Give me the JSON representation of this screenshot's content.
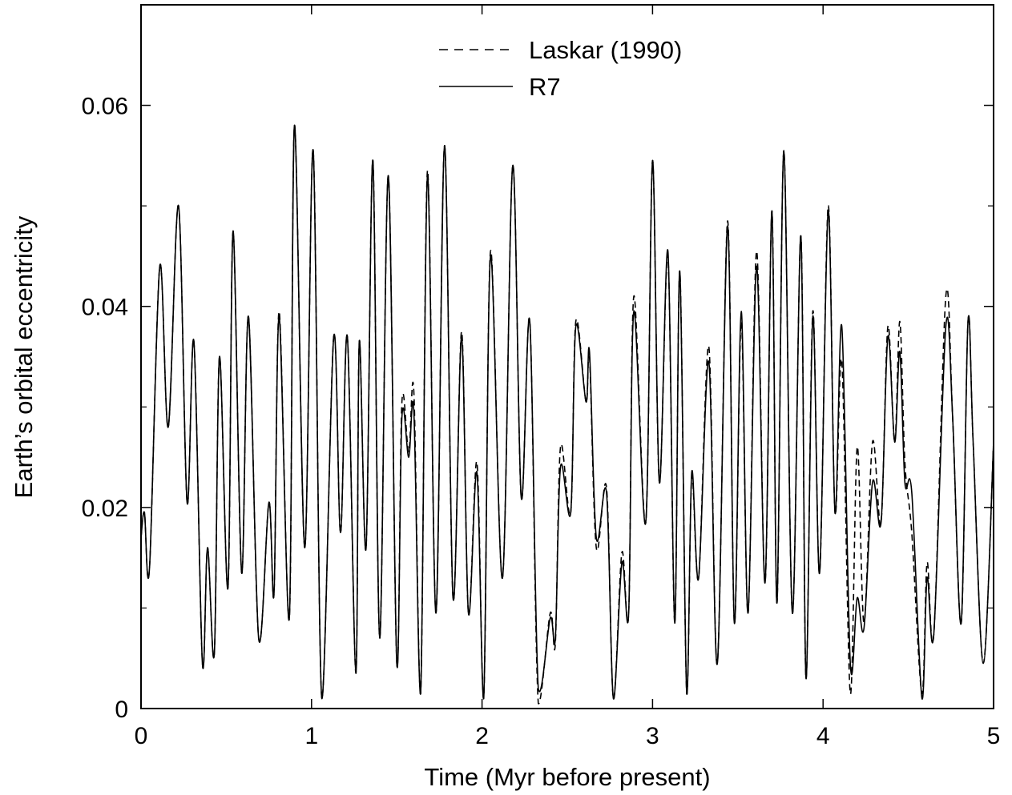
{
  "chart_data": {
    "type": "line",
    "xlabel": "Time (Myr before present)",
    "ylabel": "Earth’s orbital eccentricity",
    "xlim": [
      0,
      5
    ],
    "ylim": [
      0,
      0.07
    ],
    "x_ticks": [
      0,
      1,
      2,
      3,
      4,
      5
    ],
    "x_tick_labels": [
      "0",
      "1",
      "2",
      "3",
      "4",
      "5"
    ],
    "y_ticks": [
      0,
      0.02,
      0.04,
      0.06
    ],
    "y_tick_labels": [
      "0",
      "0.02",
      "0.04",
      "0.06"
    ],
    "y_minor_ticks": [
      0.01,
      0.03,
      0.05
    ],
    "grid": false,
    "legend_position": "top-center",
    "series": [
      {
        "name": "Laskar  (1990)",
        "style": "dashed",
        "x": [
          0.0,
          0.02,
          0.05,
          0.11,
          0.16,
          0.22,
          0.27,
          0.31,
          0.36,
          0.39,
          0.43,
          0.46,
          0.51,
          0.54,
          0.59,
          0.63,
          0.69,
          0.75,
          0.78,
          0.81,
          0.87,
          0.9,
          0.96,
          1.01,
          1.06,
          1.13,
          1.17,
          1.21,
          1.26,
          1.28,
          1.32,
          1.36,
          1.4,
          1.45,
          1.5,
          1.53,
          1.57,
          1.6,
          1.64,
          1.68,
          1.73,
          1.78,
          1.83,
          1.88,
          1.92,
          1.97,
          2.01,
          2.05,
          2.12,
          2.18,
          2.23,
          2.28,
          2.33,
          2.4,
          2.43,
          2.46,
          2.52,
          2.55,
          2.61,
          2.63,
          2.67,
          2.73,
          2.77,
          2.82,
          2.86,
          2.89,
          2.96,
          3.0,
          3.04,
          3.09,
          3.13,
          3.16,
          3.2,
          3.23,
          3.27,
          3.33,
          3.38,
          3.44,
          3.48,
          3.52,
          3.56,
          3.61,
          3.66,
          3.7,
          3.73,
          3.77,
          3.82,
          3.87,
          3.9,
          3.94,
          3.98,
          4.03,
          4.07,
          4.11,
          4.16,
          4.2,
          4.24,
          4.29,
          4.34,
          4.38,
          4.42,
          4.45,
          4.48,
          4.52,
          4.58,
          4.61,
          4.65,
          4.72,
          4.76,
          4.81,
          4.85,
          4.88,
          4.94,
          5.0
        ],
        "y": [
          0.017,
          0.0195,
          0.014,
          0.044,
          0.028,
          0.05,
          0.0205,
          0.0365,
          0.0045,
          0.016,
          0.0055,
          0.035,
          0.012,
          0.0475,
          0.0135,
          0.039,
          0.007,
          0.0205,
          0.0115,
          0.0395,
          0.009,
          0.058,
          0.016,
          0.0555,
          0.001,
          0.037,
          0.0175,
          0.037,
          0.0035,
          0.0365,
          0.016,
          0.0545,
          0.007,
          0.053,
          0.0045,
          0.0305,
          0.0255,
          0.0315,
          0.0015,
          0.0535,
          0.0095,
          0.056,
          0.011,
          0.0375,
          0.0095,
          0.0245,
          0.001,
          0.0455,
          0.013,
          0.054,
          0.021,
          0.0385,
          0.0005,
          0.0095,
          0.0065,
          0.026,
          0.0195,
          0.0385,
          0.0305,
          0.035,
          0.016,
          0.022,
          0.001,
          0.0155,
          0.0095,
          0.041,
          0.0185,
          0.0545,
          0.0225,
          0.045,
          0.0085,
          0.0435,
          0.0015,
          0.023,
          0.013,
          0.036,
          0.0045,
          0.0485,
          0.0085,
          0.0385,
          0.0095,
          0.0455,
          0.0125,
          0.0495,
          0.0105,
          0.0555,
          0.0095,
          0.047,
          0.003,
          0.0395,
          0.0135,
          0.05,
          0.0195,
          0.0345,
          0.0015,
          0.026,
          0.0085,
          0.0265,
          0.0185,
          0.038,
          0.0265,
          0.0385,
          0.0245,
          0.0175,
          0.0015,
          0.0145,
          0.0075,
          0.041,
          0.029,
          0.0085,
          0.0385,
          0.0265,
          0.0045,
          0.0265
        ]
      },
      {
        "name": "R7",
        "style": "solid",
        "x": [
          0.0,
          0.02,
          0.05,
          0.11,
          0.16,
          0.22,
          0.27,
          0.31,
          0.36,
          0.39,
          0.43,
          0.46,
          0.51,
          0.54,
          0.59,
          0.63,
          0.69,
          0.75,
          0.78,
          0.81,
          0.87,
          0.9,
          0.96,
          1.01,
          1.06,
          1.13,
          1.17,
          1.21,
          1.26,
          1.28,
          1.32,
          1.36,
          1.4,
          1.45,
          1.5,
          1.53,
          1.57,
          1.6,
          1.64,
          1.68,
          1.73,
          1.78,
          1.83,
          1.88,
          1.92,
          1.97,
          2.01,
          2.05,
          2.12,
          2.18,
          2.23,
          2.28,
          2.33,
          2.4,
          2.43,
          2.46,
          2.52,
          2.55,
          2.61,
          2.63,
          2.67,
          2.73,
          2.77,
          2.82,
          2.86,
          2.89,
          2.96,
          3.0,
          3.04,
          3.09,
          3.13,
          3.16,
          3.2,
          3.23,
          3.27,
          3.33,
          3.38,
          3.44,
          3.48,
          3.52,
          3.56,
          3.61,
          3.66,
          3.7,
          3.73,
          3.77,
          3.82,
          3.87,
          3.9,
          3.94,
          3.98,
          4.03,
          4.07,
          4.11,
          4.16,
          4.2,
          4.24,
          4.29,
          4.34,
          4.38,
          4.42,
          4.45,
          4.48,
          4.52,
          4.58,
          4.61,
          4.65,
          4.72,
          4.76,
          4.81,
          4.85,
          4.88,
          4.94,
          5.0
        ],
        "y": [
          0.017,
          0.0195,
          0.014,
          0.044,
          0.028,
          0.05,
          0.0205,
          0.0365,
          0.0045,
          0.016,
          0.0055,
          0.035,
          0.012,
          0.0475,
          0.0135,
          0.039,
          0.007,
          0.0205,
          0.0115,
          0.039,
          0.009,
          0.058,
          0.016,
          0.0555,
          0.001,
          0.037,
          0.0175,
          0.037,
          0.0035,
          0.0365,
          0.016,
          0.0545,
          0.007,
          0.053,
          0.0045,
          0.029,
          0.025,
          0.0295,
          0.0015,
          0.053,
          0.0095,
          0.056,
          0.011,
          0.037,
          0.0095,
          0.0235,
          0.001,
          0.045,
          0.013,
          0.054,
          0.021,
          0.0385,
          0.002,
          0.009,
          0.007,
          0.024,
          0.0195,
          0.038,
          0.0305,
          0.0355,
          0.017,
          0.0215,
          0.001,
          0.0145,
          0.0095,
          0.0395,
          0.0185,
          0.0545,
          0.0225,
          0.0455,
          0.0085,
          0.0435,
          0.0015,
          0.0235,
          0.013,
          0.0345,
          0.0045,
          0.048,
          0.0085,
          0.0395,
          0.0095,
          0.044,
          0.0125,
          0.0495,
          0.0105,
          0.0555,
          0.0095,
          0.047,
          0.003,
          0.039,
          0.0135,
          0.0495,
          0.0195,
          0.038,
          0.0045,
          0.011,
          0.008,
          0.0225,
          0.0185,
          0.037,
          0.0265,
          0.0355,
          0.0225,
          0.0215,
          0.001,
          0.013,
          0.0075,
          0.038,
          0.029,
          0.0085,
          0.0385,
          0.0265,
          0.0045,
          0.0265
        ]
      }
    ]
  }
}
